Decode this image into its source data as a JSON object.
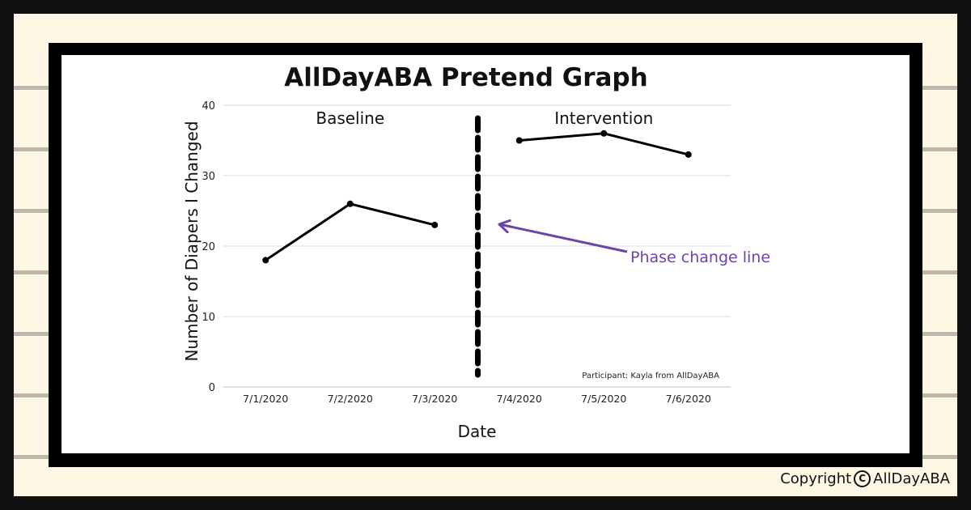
{
  "colors": {
    "background": "#111111",
    "paper": "#fff7e3",
    "paper_stripe": "#bdb8ac",
    "card": "#ffffff",
    "line": "#000000",
    "annotation": "#6b45a8",
    "grid": "#d9d9d9"
  },
  "chart_data": {
    "type": "line",
    "title": "AllDayABA Pretend Graph",
    "xlabel": "Date",
    "ylabel": "Number of Diapers I Changed",
    "categories": [
      "7/1/2020",
      "7/2/2020",
      "7/3/2020",
      "7/4/2020",
      "7/5/2020",
      "7/6/2020"
    ],
    "ylim": [
      0,
      40
    ],
    "yticks": [
      0,
      10,
      20,
      30,
      40
    ],
    "grid": true,
    "series": [
      {
        "phase": "Baseline",
        "points": [
          {
            "x": "7/1/2020",
            "y": 18
          },
          {
            "x": "7/2/2020",
            "y": 26
          },
          {
            "x": "7/3/2020",
            "y": 23
          }
        ]
      },
      {
        "phase": "Intervention",
        "points": [
          {
            "x": "7/4/2020",
            "y": 35
          },
          {
            "x": "7/5/2020",
            "y": 36
          },
          {
            "x": "7/6/2020",
            "y": 33
          }
        ]
      }
    ],
    "phases": [
      "Baseline",
      "Intervention"
    ],
    "phase_change_after": "7/3/2020",
    "annotations": {
      "phase_change_label": "Phase change line",
      "participant_note": "Participant: Kayla from AllDayABA"
    }
  },
  "footer": {
    "copyright_label": "Copyright",
    "copyright_symbol": "C",
    "copyright_owner": "AllDayABA"
  }
}
